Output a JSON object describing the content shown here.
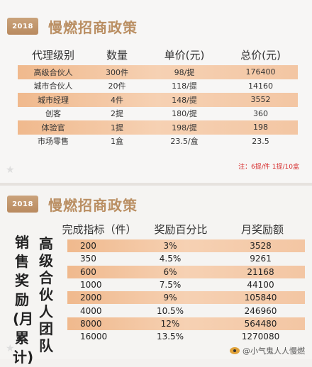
{
  "section1": {
    "badge": "2018",
    "title": "慢燃招商政策",
    "headers": [
      "代理级别",
      "数量",
      "单价(元)",
      "总价(元)"
    ],
    "rows": [
      {
        "level": "高级合伙人",
        "qty": "300件",
        "unit": "98/提",
        "total": "176400",
        "band": true
      },
      {
        "level": "城市合伙人",
        "qty": "20件",
        "unit": "118/提",
        "total": "14160",
        "band": false
      },
      {
        "level": "城市经理",
        "qty": "4件",
        "unit": "148/提",
        "total": "3552",
        "band": true
      },
      {
        "level": "创客",
        "qty": "2提",
        "unit": "180/提",
        "total": "360",
        "band": false
      },
      {
        "level": "体验官",
        "qty": "1提",
        "unit": "198/提",
        "total": "198",
        "band": true
      },
      {
        "level": "市场零售",
        "qty": "1盒",
        "unit": "23.5/盒",
        "total": "23.5",
        "band": false
      }
    ],
    "note": "注：6提/件  1提/10盒"
  },
  "section2": {
    "badge": "2018",
    "title": "慢燃招商政策",
    "side_label_main": "销售奖励(月累计)",
    "side_label_sub": "高级合伙人团队",
    "headers": [
      "完成指标（件）",
      "奖励百分比",
      "月奖励额"
    ],
    "rows": [
      {
        "target": "200",
        "percent": "3%",
        "amount": "3528",
        "band": true
      },
      {
        "target": "350",
        "percent": "4.5%",
        "amount": "9261",
        "band": false
      },
      {
        "target": "600",
        "percent": "6%",
        "amount": "21168",
        "band": true
      },
      {
        "target": "1000",
        "percent": "7.5%",
        "amount": "44100",
        "band": false
      },
      {
        "target": "2000",
        "percent": "9%",
        "amount": "105840",
        "band": true
      },
      {
        "target": "4000",
        "percent": "10.5%",
        "amount": "246960",
        "band": false
      },
      {
        "target": "8000",
        "percent": "12%",
        "amount": "564480",
        "band": true
      },
      {
        "target": "16000",
        "percent": "13.5%",
        "amount": "1270080",
        "band": false
      }
    ]
  },
  "watermark": "@小气鬼人人慢燃",
  "colors": {
    "accent": "#ba8f63",
    "band": "#f3c6a3",
    "note": "#d62a2a"
  }
}
